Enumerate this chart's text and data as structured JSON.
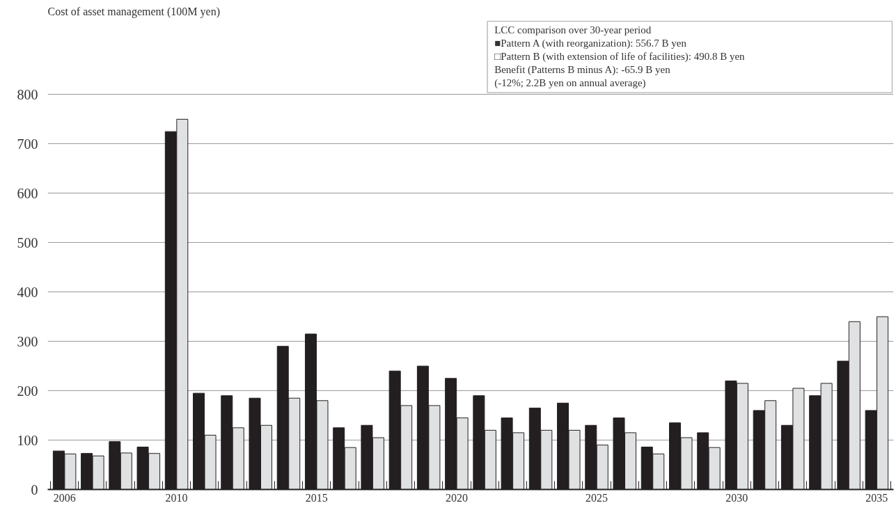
{
  "chart_data": {
    "type": "bar",
    "ylabel": "Cost of asset management (100M yen)",
    "categories": [
      "2006",
      null,
      null,
      null,
      "2010",
      null,
      null,
      null,
      null,
      "2015",
      null,
      null,
      null,
      null,
      "2020",
      null,
      null,
      null,
      null,
      "2025",
      null,
      null,
      null,
      null,
      "2030",
      null,
      null,
      null,
      null,
      "2035"
    ],
    "series": [
      {
        "color": "#231f20",
        "values": [
          78,
          73,
          97,
          86,
          725,
          195,
          190,
          185,
          290,
          315,
          125,
          130,
          240,
          250,
          225,
          190,
          145,
          165,
          175,
          130,
          145,
          86,
          135,
          115,
          220,
          160,
          130,
          190,
          260,
          160
        ]
      },
      {
        "color": "#e0e1e3",
        "values": [
          72,
          68,
          74,
          73,
          750,
          110,
          125,
          130,
          185,
          180,
          85,
          105,
          170,
          170,
          145,
          120,
          115,
          120,
          120,
          90,
          115,
          72,
          105,
          85,
          215,
          180,
          205,
          215,
          340,
          350
        ]
      }
    ],
    "ylim": [
      0,
      950
    ],
    "yticks": [
      0,
      100,
      200,
      300,
      400,
      500,
      600,
      700,
      800
    ],
    "grid": "y",
    "annotations": [
      "LCC comparison over 30-year period",
      "■Pattern A (with reorganization): 556.7 B yen",
      "□Pattern B (with extension of life of facilities): 490.8 B yen",
      "Benefit (Patterns B minus A): -65.9 B yen",
      "(-12%; 2.2B yen on annual average)"
    ]
  }
}
